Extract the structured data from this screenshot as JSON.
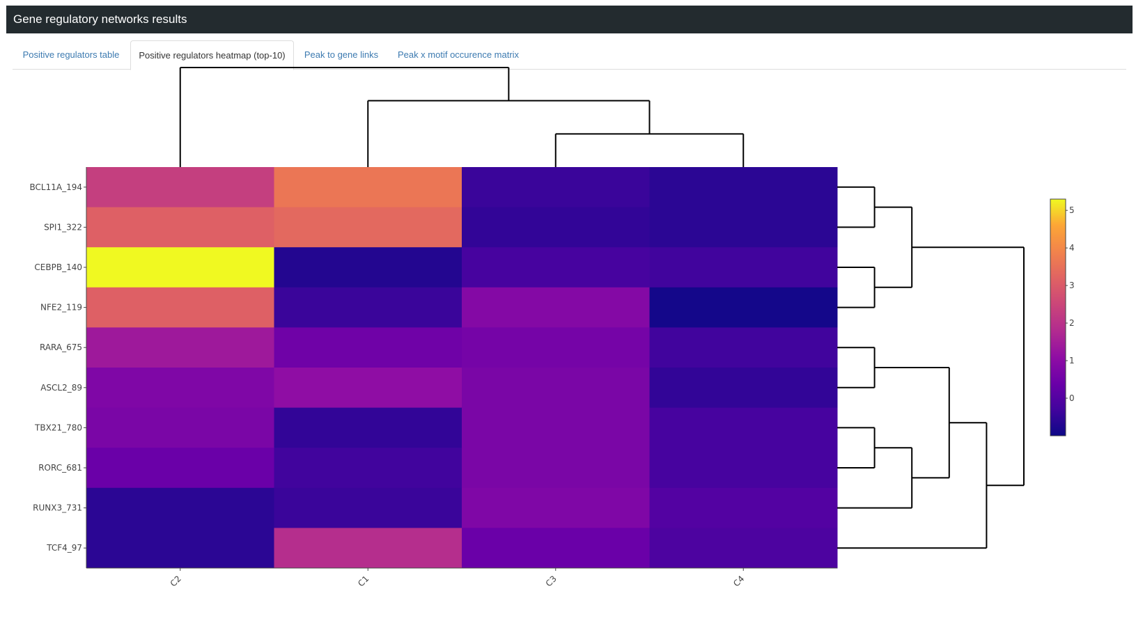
{
  "header": {
    "title": "Gene regulatory networks results"
  },
  "tabs": [
    {
      "label": "Positive regulators table",
      "active": false
    },
    {
      "label": "Positive regulators heatmap (top-10)",
      "active": true
    },
    {
      "label": "Peak to gene links",
      "active": false
    },
    {
      "label": "Peak x motif occurence matrix",
      "active": false
    }
  ],
  "colors": {
    "link": "#3c7ab0",
    "header_bg": "#232b2f",
    "colorscale": "plasma"
  },
  "chart_data": {
    "type": "heatmap",
    "title": "",
    "colorscale": "plasma",
    "zlim": [
      -1.0,
      5.3
    ],
    "colorbar_ticks": [
      0,
      1,
      2,
      3,
      4,
      5
    ],
    "columns": [
      "C2",
      "C1",
      "C3",
      "C4"
    ],
    "rows": [
      "BCL11A_194",
      "SPI1_322",
      "CEBPB_140",
      "NFE2_119",
      "RARA_675",
      "ASCL2_89",
      "TBX21_780",
      "RORC_681",
      "RUNX3_731",
      "TCF4_97"
    ],
    "values": [
      [
        2.3,
        3.6,
        -0.4,
        -0.6
      ],
      [
        3.1,
        3.3,
        -0.5,
        -0.6
      ],
      [
        5.3,
        -0.7,
        -0.2,
        -0.3
      ],
      [
        3.1,
        -0.4,
        0.9,
        -0.9
      ],
      [
        1.4,
        0.5,
        0.6,
        -0.3
      ],
      [
        0.8,
        1.1,
        0.7,
        -0.5
      ],
      [
        0.7,
        -0.5,
        0.7,
        -0.2
      ],
      [
        0.4,
        -0.3,
        0.7,
        -0.2
      ],
      [
        -0.6,
        -0.4,
        0.8,
        0.0
      ],
      [
        -0.6,
        1.9,
        0.4,
        -0.1
      ]
    ],
    "column_dendrogram": "((C2,(C1,(C3,C4))))",
    "row_dendrogram": "((((BCL11A_194,SPI1_322),(CEBPB_140,NFE2_119)),(((RARA_675,ASCL2_89),((TBX21_780,RORC_681),RUNX3_731)),TCF4_97)))"
  }
}
